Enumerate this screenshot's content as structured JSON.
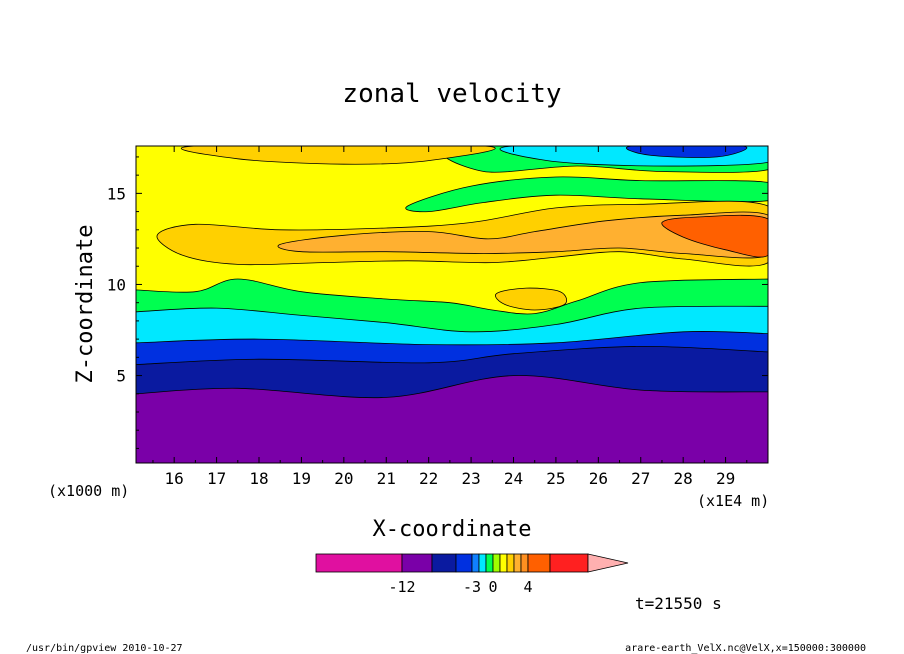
{
  "chart_data": {
    "type": "heatmap",
    "title": "zonal velocity",
    "xlabel": "X-coordinate",
    "ylabel": "Z-coordinate",
    "x_unit_left": "(x1000 m)",
    "x_unit_right": "(x1E4 m)",
    "x_ticks": [
      "16",
      "17",
      "18",
      "19",
      "20",
      "21",
      "22",
      "23",
      "24",
      "25",
      "26",
      "27",
      "28",
      "29"
    ],
    "y_ticks": [
      "5",
      "10",
      "15"
    ],
    "xlim": [
      15.1,
      30
    ],
    "ylim": [
      0.2,
      17.6
    ],
    "time_label": "t=21550 s",
    "colorbar": {
      "labels": [
        "-12",
        "-3",
        "0",
        "4"
      ],
      "colors": [
        "#e010a0",
        "#7a00a8",
        "#0a1aa0",
        "#0030e0",
        "#1080ff",
        "#00e8ff",
        "#00ff50",
        "#a0ff00",
        "#ffff00",
        "#ffd000",
        "#ffb030",
        "#ff9020",
        "#ff6000",
        "#ff2020",
        "#ff8080",
        "#ffb0b0"
      ]
    },
    "bands": [
      {
        "name": "purple",
        "color": "#7a00a8",
        "top": [
          [
            15.1,
            4.0
          ],
          [
            17.5,
            4.3
          ],
          [
            21,
            3.8
          ],
          [
            24,
            5.0
          ],
          [
            27,
            4.2
          ],
          [
            30,
            4.1
          ]
        ]
      },
      {
        "name": "navy",
        "color": "#0a1aa0",
        "top": [
          [
            15.1,
            5.6
          ],
          [
            18,
            5.9
          ],
          [
            22,
            5.7
          ],
          [
            24,
            6.2
          ],
          [
            27,
            6.6
          ],
          [
            30,
            6.3
          ]
        ]
      },
      {
        "name": "blue",
        "color": "#0030e0",
        "top": [
          [
            15.1,
            6.8
          ],
          [
            18,
            7.0
          ],
          [
            22,
            6.7
          ],
          [
            25,
            6.8
          ],
          [
            28,
            7.4
          ],
          [
            30,
            7.3
          ]
        ]
      },
      {
        "name": "cyan",
        "color": "#00e8ff",
        "top": [
          [
            15.1,
            8.5
          ],
          [
            17,
            8.7
          ],
          [
            19,
            8.3
          ],
          [
            21,
            7.9
          ],
          [
            23,
            7.4
          ],
          [
            25,
            7.8
          ],
          [
            27,
            8.7
          ],
          [
            30,
            8.8
          ]
        ]
      },
      {
        "name": "green",
        "color": "#00ff50",
        "top": [
          [
            15.1,
            9.7
          ],
          [
            16.5,
            9.6
          ],
          [
            17.5,
            10.3
          ],
          [
            19,
            9.6
          ],
          [
            21,
            9.2
          ],
          [
            22.5,
            9.0
          ],
          [
            23.5,
            8.6
          ],
          [
            24.5,
            8.4
          ],
          [
            25.5,
            9.1
          ],
          [
            27,
            10.1
          ],
          [
            30,
            10.3
          ]
        ]
      },
      {
        "name": "yellow",
        "color": "#ffff00",
        "top": [
          [
            15.1,
            17.6
          ],
          [
            30,
            17.6
          ]
        ]
      }
    ],
    "blobs": [
      {
        "color": "#00ff50",
        "pts": [
          [
            21.5,
            14.3
          ],
          [
            23,
            15.4
          ],
          [
            25,
            15.9
          ],
          [
            27,
            15.7
          ],
          [
            30,
            15.6
          ],
          [
            30,
            14.6
          ],
          [
            27,
            14.7
          ],
          [
            25,
            14.9
          ],
          [
            23.3,
            14.5
          ],
          [
            22,
            14.0
          ]
        ]
      },
      {
        "color": "#00ff50",
        "pts": [
          [
            22.8,
            17.6
          ],
          [
            23.3,
            16.2
          ],
          [
            25.5,
            16.5
          ],
          [
            27.5,
            16.2
          ],
          [
            30,
            16.3
          ],
          [
            30,
            17.6
          ]
        ]
      },
      {
        "color": "#00e8ff",
        "pts": [
          [
            24,
            17.6
          ],
          [
            24.8,
            16.8
          ],
          [
            27.3,
            16.5
          ],
          [
            30,
            16.7
          ],
          [
            30,
            17.6
          ]
        ]
      },
      {
        "color": "#0030e0",
        "pts": [
          [
            26.8,
            17.6
          ],
          [
            27.2,
            17.1
          ],
          [
            28.8,
            17.0
          ],
          [
            29.4,
            17.6
          ]
        ]
      },
      {
        "color": "#ffd000",
        "pts": [
          [
            16.5,
            17.6
          ],
          [
            17.5,
            16.9
          ],
          [
            20,
            16.6
          ],
          [
            22,
            16.8
          ],
          [
            23.3,
            17.6
          ]
        ]
      },
      {
        "color": "#ffd000",
        "pts": [
          [
            15.6,
            12.7
          ],
          [
            16.5,
            13.3
          ],
          [
            18.5,
            13.0
          ],
          [
            21,
            13.1
          ],
          [
            23,
            13.4
          ],
          [
            25,
            14.2
          ],
          [
            27,
            14.4
          ],
          [
            30,
            14.3
          ],
          [
            30,
            11.2
          ],
          [
            28,
            11.4
          ],
          [
            26.5,
            11.8
          ],
          [
            25,
            11.5
          ],
          [
            23.5,
            11.2
          ],
          [
            21.5,
            11.3
          ],
          [
            19.5,
            11.2
          ],
          [
            17.5,
            11.1
          ],
          [
            16.2,
            11.6
          ]
        ]
      },
      {
        "color": "#ffb030",
        "pts": [
          [
            18.5,
            12.2
          ],
          [
            20,
            12.7
          ],
          [
            22,
            12.9
          ],
          [
            23.4,
            12.5
          ],
          [
            24.5,
            12.9
          ],
          [
            26.2,
            13.5
          ],
          [
            28,
            13.8
          ],
          [
            30,
            13.8
          ],
          [
            30,
            11.6
          ],
          [
            28,
            11.7
          ],
          [
            26.5,
            12.0
          ],
          [
            25,
            11.8
          ],
          [
            23.3,
            11.7
          ],
          [
            21,
            11.8
          ],
          [
            19,
            11.8
          ]
        ]
      },
      {
        "color": "#ff6000",
        "pts": [
          [
            27.5,
            13.4
          ],
          [
            28.3,
            13.7
          ],
          [
            30,
            13.6
          ],
          [
            30,
            11.6
          ],
          [
            29,
            11.9
          ],
          [
            28,
            12.6
          ]
        ]
      },
      {
        "color": "#ffd000",
        "pts": [
          [
            23.6,
            9.5
          ],
          [
            24.3,
            9.8
          ],
          [
            25.1,
            9.6
          ],
          [
            25.2,
            8.9
          ],
          [
            24.5,
            8.6
          ],
          [
            23.8,
            8.9
          ]
        ]
      }
    ]
  },
  "footer": {
    "left": "/usr/bin/gpview  2010-10-27",
    "right": "arare-earth_VelX.nc@VelX,x=150000:300000"
  }
}
